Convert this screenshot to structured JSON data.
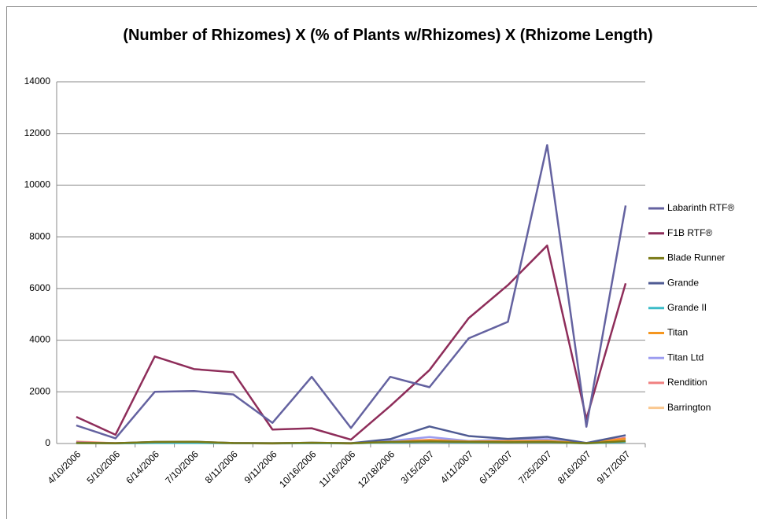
{
  "chart_data": {
    "type": "line",
    "title": "(Number of Rhizomes)  X  (% of Plants w/Rhizomes)  X (Rhizome Length)",
    "categories": [
      "4/10/2006",
      "5/10/2006",
      "6/14/2006",
      "7/10/2006",
      "8/11/2006",
      "9/11/2006",
      "10/16/2006",
      "11/16/2006",
      "12/18/2006",
      "3/15/2007",
      "4/11/2007",
      "6/13/2007",
      "7/25/2007",
      "8/16/2007",
      "9/17/2007"
    ],
    "series": [
      {
        "name": "Labarinth RTF®",
        "color": "#6462a0",
        "values": [
          700,
          200,
          2000,
          2030,
          1900,
          800,
          2580,
          600,
          2580,
          2180,
          4070,
          4710,
          11550,
          650,
          9210
        ]
      },
      {
        "name": "F1B RTF®",
        "color": "#8e2d5a",
        "values": [
          1030,
          340,
          3370,
          2880,
          2760,
          540,
          590,
          150,
          1450,
          2840,
          4850,
          6130,
          7660,
          950,
          6200
        ]
      },
      {
        "name": "Blade Runner",
        "color": "#7a7a16",
        "values": [
          20,
          10,
          60,
          70,
          20,
          10,
          30,
          10,
          60,
          80,
          60,
          50,
          60,
          10,
          90
        ]
      },
      {
        "name": "Grande",
        "color": "#4f5b93",
        "values": [
          30,
          10,
          60,
          70,
          20,
          10,
          30,
          10,
          170,
          660,
          290,
          180,
          260,
          20,
          320
        ]
      },
      {
        "name": "Grande II",
        "color": "#3bbcc8",
        "values": [
          10,
          5,
          20,
          20,
          10,
          5,
          10,
          5,
          40,
          60,
          40,
          40,
          50,
          5,
          60
        ]
      },
      {
        "name": "Titan",
        "color": "#f5961f",
        "values": [
          20,
          10,
          30,
          30,
          10,
          5,
          20,
          5,
          60,
          120,
          80,
          90,
          100,
          10,
          180
        ]
      },
      {
        "name": "Titan Ltd",
        "color": "#9c9cf0",
        "values": [
          30,
          10,
          40,
          40,
          20,
          10,
          20,
          10,
          100,
          250,
          100,
          150,
          170,
          10,
          150
        ]
      },
      {
        "name": "Rendition",
        "color": "#f08080",
        "values": [
          60,
          10,
          30,
          30,
          10,
          5,
          20,
          5,
          80,
          140,
          90,
          100,
          80,
          10,
          220
        ]
      },
      {
        "name": "Barrington",
        "color": "#fac890",
        "values": [
          80,
          10,
          20,
          20,
          10,
          5,
          10,
          5,
          50,
          100,
          60,
          70,
          60,
          10,
          100
        ]
      }
    ],
    "ylim": [
      0,
      14000
    ],
    "yticks": [
      0,
      2000,
      4000,
      6000,
      8000,
      10000,
      12000,
      14000
    ],
    "grid": true,
    "legend": "right"
  }
}
